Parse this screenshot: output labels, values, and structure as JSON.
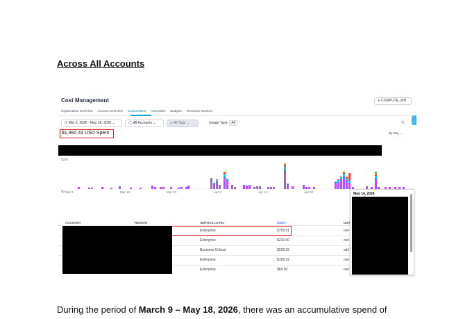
{
  "heading": "Across All Accounts",
  "app": {
    "title": "Cost Management",
    "warehouse_button": "COMPUTE_WH",
    "tabs": [
      "Organization Overview",
      "Account Overview",
      "Consumption",
      "Anomalies",
      "Budgets",
      "Resource Monitors"
    ],
    "active_tab": "Consumption",
    "filters": {
      "date_range": "Mar 9, 2026 - May 18, 2026",
      "accounts": "All Accounts",
      "tags": "All Tags",
      "usage_type_label": "Usage Type",
      "usage_type_value": "All"
    },
    "spent": "$1,992.43 USD Spent",
    "by_label": "By",
    "by_value": "Day",
    "chart_data": {
      "type": "bar",
      "stacked": true,
      "y_ticks": [
        "$200",
        "$0"
      ],
      "x_ticks": [
        "Mar 9",
        "Mar 16",
        "Mar 23",
        "Apr 6",
        "Apr 13",
        "Apr 20"
      ],
      "series_colors": [
        "#a855f7",
        "#d946ef",
        "#3b82f6",
        "#22d3ee",
        "#ef4444",
        "#f59e0b",
        "#6b7280",
        "#10b981"
      ],
      "bars": [
        {
          "x": 28,
          "v": [
            2,
            1
          ]
        },
        {
          "x": 43,
          "v": [
            2
          ]
        },
        {
          "x": 47,
          "v": [
            1,
            1
          ]
        },
        {
          "x": 62,
          "v": [
            2,
            1
          ]
        },
        {
          "x": 75,
          "v": [
            1,
            1
          ]
        },
        {
          "x": 87,
          "v": [
            2,
            1,
            1
          ]
        },
        {
          "x": 103,
          "v": [
            1,
            1
          ]
        },
        {
          "x": 117,
          "v": [
            1,
            1
          ]
        },
        {
          "x": 134,
          "v": [
            3,
            1,
            1
          ]
        },
        {
          "x": 138,
          "v": [
            2,
            1
          ]
        },
        {
          "x": 146,
          "v": [
            2,
            1
          ]
        },
        {
          "x": 150,
          "v": [
            2,
            1
          ]
        },
        {
          "x": 161,
          "v": [
            2,
            1
          ]
        },
        {
          "x": 172,
          "v": [
            2
          ]
        },
        {
          "x": 176,
          "v": [
            2,
            1
          ]
        },
        {
          "x": 183,
          "v": [
            2,
            1
          ]
        },
        {
          "x": 186,
          "v": [
            3,
            1,
            1
          ]
        },
        {
          "x": 219,
          "v": [
            9,
            3,
            2,
            1,
            1
          ]
        },
        {
          "x": 223,
          "v": [
            4,
            2,
            2,
            1
          ]
        },
        {
          "x": 227,
          "v": [
            6,
            3,
            2,
            2,
            1
          ]
        },
        {
          "x": 231,
          "v": [
            3,
            2,
            1
          ]
        },
        {
          "x": 238,
          "v": [
            10,
            4,
            4,
            3,
            3,
            1
          ]
        },
        {
          "x": 242,
          "v": [
            8,
            3,
            2,
            1,
            1
          ]
        },
        {
          "x": 249,
          "v": [
            3,
            2,
            1
          ]
        },
        {
          "x": 253,
          "v": [
            2,
            1
          ]
        },
        {
          "x": 266,
          "v": [
            3,
            2,
            1
          ]
        },
        {
          "x": 270,
          "v": [
            2,
            2,
            1
          ]
        },
        {
          "x": 274,
          "v": [
            3,
            2,
            1
          ]
        },
        {
          "x": 281,
          "v": [
            2,
            1
          ]
        },
        {
          "x": 285,
          "v": [
            3,
            1
          ]
        },
        {
          "x": 289,
          "v": [
            2,
            1,
            1
          ]
        },
        {
          "x": 301,
          "v": [
            2,
            1
          ]
        },
        {
          "x": 305,
          "v": [
            2,
            1
          ]
        },
        {
          "x": 309,
          "v": [
            2,
            1
          ]
        },
        {
          "x": 325,
          "v": [
            14,
            8,
            6,
            4,
            3,
            2
          ]
        },
        {
          "x": 329,
          "v": [
            4,
            2,
            1,
            1
          ]
        },
        {
          "x": 336,
          "v": [
            3,
            1
          ]
        },
        {
          "x": 352,
          "v": [
            3,
            2,
            1
          ]
        },
        {
          "x": 356,
          "v": [
            2,
            1
          ]
        },
        {
          "x": 360,
          "v": [
            2,
            1
          ]
        },
        {
          "x": 367,
          "v": [
            2,
            1
          ]
        },
        {
          "x": 398,
          "v": [
            5,
            3,
            2,
            1
          ]
        },
        {
          "x": 402,
          "v": [
            5,
            3,
            3,
            2,
            1
          ]
        },
        {
          "x": 406,
          "v": [
            8,
            4,
            3,
            2,
            1
          ]
        },
        {
          "x": 410,
          "v": [
            10,
            5,
            4,
            3,
            2,
            1
          ]
        },
        {
          "x": 414,
          "v": [
            6,
            4,
            3,
            2,
            2,
            1
          ]
        },
        {
          "x": 418,
          "v": [
            4,
            3,
            2,
            3,
            11
          ]
        },
        {
          "x": 423,
          "v": [
            2,
            1
          ]
        },
        {
          "x": 443,
          "v": [
            3,
            1
          ]
        },
        {
          "x": 450,
          "v": [
            2,
            1
          ]
        },
        {
          "x": 456,
          "v": [
            9,
            4,
            3,
            3,
            2,
            2,
            1,
            1
          ]
        },
        {
          "x": 460,
          "v": [
            2,
            1
          ]
        },
        {
          "x": 470,
          "v": [
            2,
            1
          ]
        },
        {
          "x": 476,
          "v": [
            2,
            1
          ]
        },
        {
          "x": 484,
          "v": [
            2,
            1
          ]
        },
        {
          "x": 490,
          "v": [
            2,
            1
          ]
        },
        {
          "x": 496,
          "v": [
            2,
            1
          ]
        }
      ]
    },
    "table": {
      "headers": [
        "ACCOUNT",
        "REGION",
        "SERVICE LEVEL",
        "COST",
        "USA"
      ],
      "rows": [
        {
          "service": "Enterprise",
          "cost": "$758.61",
          "usage": "ove"
        },
        {
          "service": "Enterprise",
          "cost": "$233.00",
          "usage": "ove"
        },
        {
          "service": "Business Critical",
          "cost": "$228.03",
          "usage": "ad.f"
        },
        {
          "service": "Enterprise",
          "cost": "$196.52",
          "usage": "ove"
        },
        {
          "service": "Enterprise",
          "cost": "$84.90",
          "usage": "ove"
        }
      ]
    },
    "tooltip_date": "May 14, 2026"
  },
  "paragraph": {
    "before": "During the period of ",
    "bold": "March 9 – May 18, 2026",
    "after": ", there was an accumulative spend of"
  }
}
